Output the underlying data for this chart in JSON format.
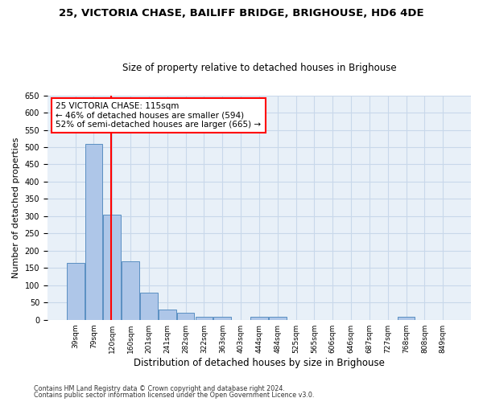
{
  "title1": "25, VICTORIA CHASE, BAILIFF BRIDGE, BRIGHOUSE, HD6 4DE",
  "title2": "Size of property relative to detached houses in Brighouse",
  "xlabel": "Distribution of detached houses by size in Brighouse",
  "ylabel": "Number of detached properties",
  "bar_labels": [
    "39sqm",
    "79sqm",
    "120sqm",
    "160sqm",
    "201sqm",
    "241sqm",
    "282sqm",
    "322sqm",
    "363sqm",
    "403sqm",
    "444sqm",
    "484sqm",
    "525sqm",
    "565sqm",
    "606sqm",
    "646sqm",
    "687sqm",
    "727sqm",
    "768sqm",
    "808sqm",
    "849sqm"
  ],
  "bar_values": [
    165,
    510,
    305,
    170,
    78,
    30,
    20,
    8,
    8,
    0,
    8,
    8,
    0,
    0,
    0,
    0,
    0,
    0,
    8,
    0,
    0
  ],
  "bar_color": "#aec6e8",
  "bar_edge_color": "#5a8fc2",
  "grid_color": "#c8d8ea",
  "background_color": "#e8f0f8",
  "red_line_x": 1.93,
  "annotation_title": "25 VICTORIA CHASE: 115sqm",
  "annotation_line1": "← 46% of detached houses are smaller (594)",
  "annotation_line2": "52% of semi-detached houses are larger (665) →",
  "footnote1": "Contains HM Land Registry data © Crown copyright and database right 2024.",
  "footnote2": "Contains public sector information licensed under the Open Government Licence v3.0.",
  "ylim": [
    0,
    650
  ],
  "yticks": [
    0,
    50,
    100,
    150,
    200,
    250,
    300,
    350,
    400,
    450,
    500,
    550,
    600,
    650
  ]
}
